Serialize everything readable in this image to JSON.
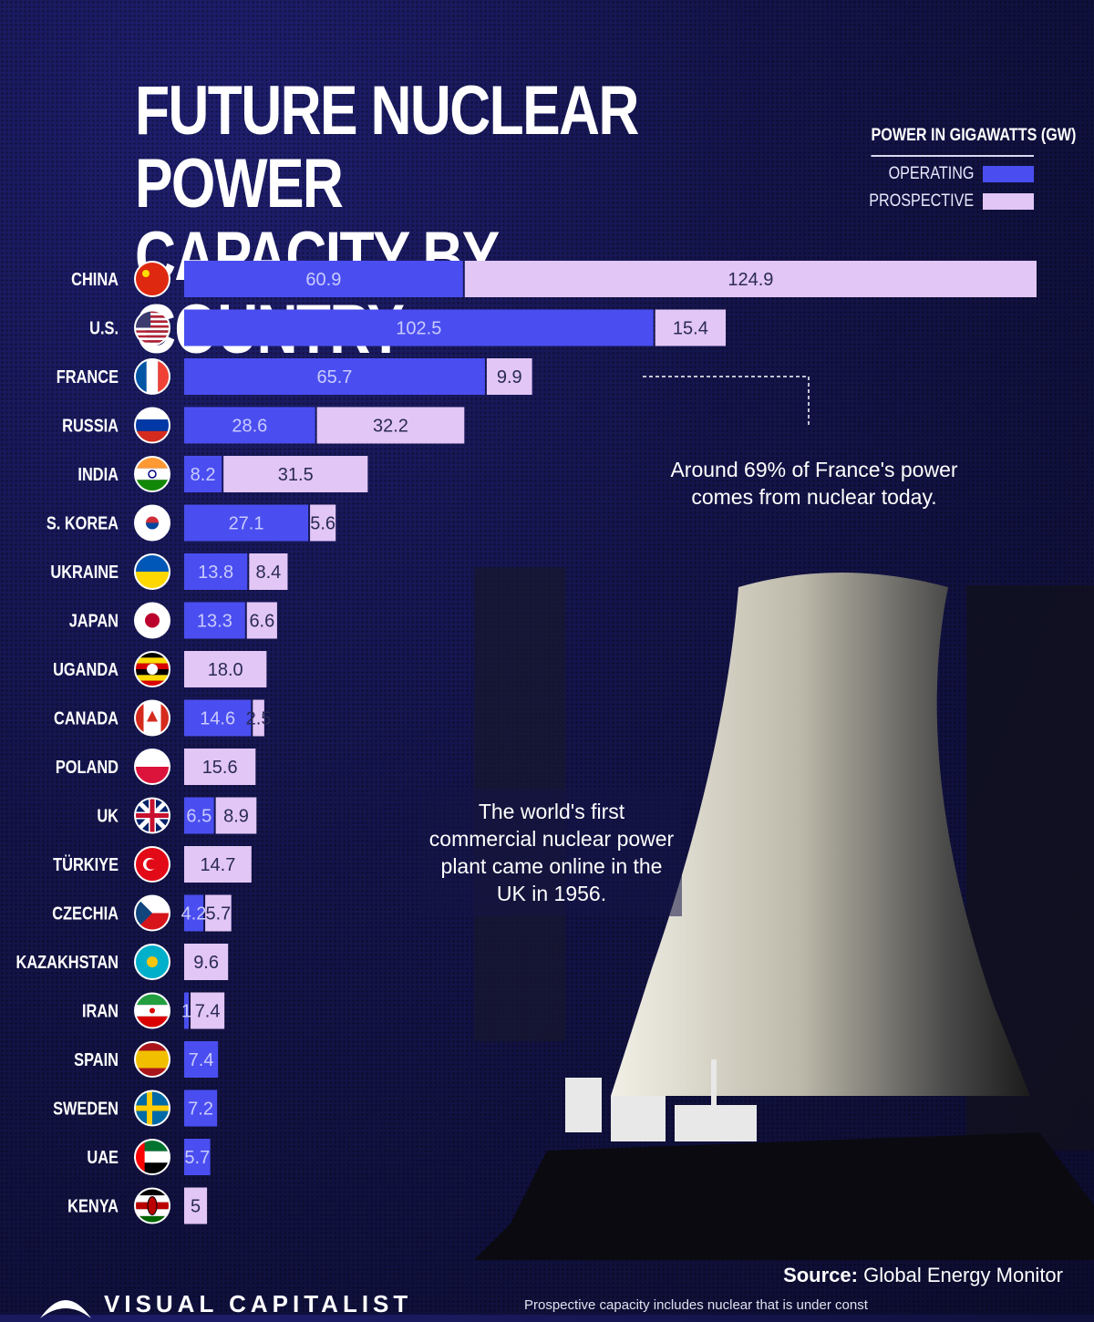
{
  "title": {
    "line1": "FUTURE NUCLEAR POWER",
    "line2": "CAPACITY BY COUNTRY"
  },
  "legend": {
    "title": "POWER IN GIGAWATTS (GW)",
    "operating": "OPERATING",
    "prospective": "PROSPECTIVE"
  },
  "colors": {
    "operating": "#4a4ef0",
    "prospective": "#e2c6f6",
    "background": "#14144a"
  },
  "annotations": {
    "france": "Around 69% of France's power comes from nuclear today.",
    "uk": "The world's first commercial nuclear power plant came online in the UK in 1956."
  },
  "source": {
    "label": "Source:",
    "text": "Global Energy Monitor"
  },
  "footnote": "Prospective capacity includes nuclear that is under const",
  "brand": "VISUAL CAPITALIST",
  "chart_data": {
    "type": "bar",
    "orientation": "horizontal",
    "stacked": true,
    "categories": [
      "CHINA",
      "U.S.",
      "FRANCE",
      "RUSSIA",
      "INDIA",
      "S. KOREA",
      "UKRAINE",
      "JAPAN",
      "UGANDA",
      "CANADA",
      "POLAND",
      "UK",
      "TÜRKIYE",
      "CZECHIA",
      "KAZAKHSTAN",
      "IRAN",
      "SPAIN",
      "SWEDEN",
      "UAE",
      "KENYA"
    ],
    "flags": [
      "china",
      "usa",
      "france",
      "russia",
      "india",
      "south-korea",
      "ukraine",
      "japan",
      "uganda",
      "canada",
      "poland",
      "uk",
      "turkiye",
      "czechia",
      "kazakhstan",
      "iran",
      "spain",
      "sweden",
      "uae",
      "kenya"
    ],
    "series": [
      {
        "name": "OPERATING",
        "values": [
          60.9,
          102.5,
          65.7,
          28.6,
          8.2,
          27.1,
          13.8,
          13.3,
          null,
          14.6,
          null,
          6.5,
          null,
          4.2,
          null,
          1,
          7.4,
          7.2,
          5.7,
          null
        ]
      },
      {
        "name": "PROSPECTIVE",
        "values": [
          124.9,
          15.4,
          9.9,
          32.2,
          31.5,
          5.6,
          8.4,
          6.6,
          18.0,
          2.5,
          15.6,
          8.9,
          14.7,
          5.7,
          9.6,
          7.4,
          null,
          null,
          null,
          5
        ]
      }
    ],
    "labels": {
      "operating": [
        "60.9",
        "102.5",
        "65.7",
        "28.6",
        "8.2",
        "27.1",
        "13.8",
        "13.3",
        "",
        "14.6",
        "",
        "6.5",
        "",
        "4.2",
        "",
        "1",
        "7.4",
        "7.2",
        "5.7",
        ""
      ],
      "prospective": [
        "124.9",
        "15.4",
        "9.9",
        "32.2",
        "31.5",
        "5.6",
        "8.4",
        "6.6",
        "18.0",
        "2.5",
        "15.6",
        "8.9",
        "14.7",
        "5.7",
        "9.6",
        "7.4",
        "",
        "",
        "",
        "5"
      ]
    },
    "xlim": [
      0,
      185.8
    ]
  }
}
